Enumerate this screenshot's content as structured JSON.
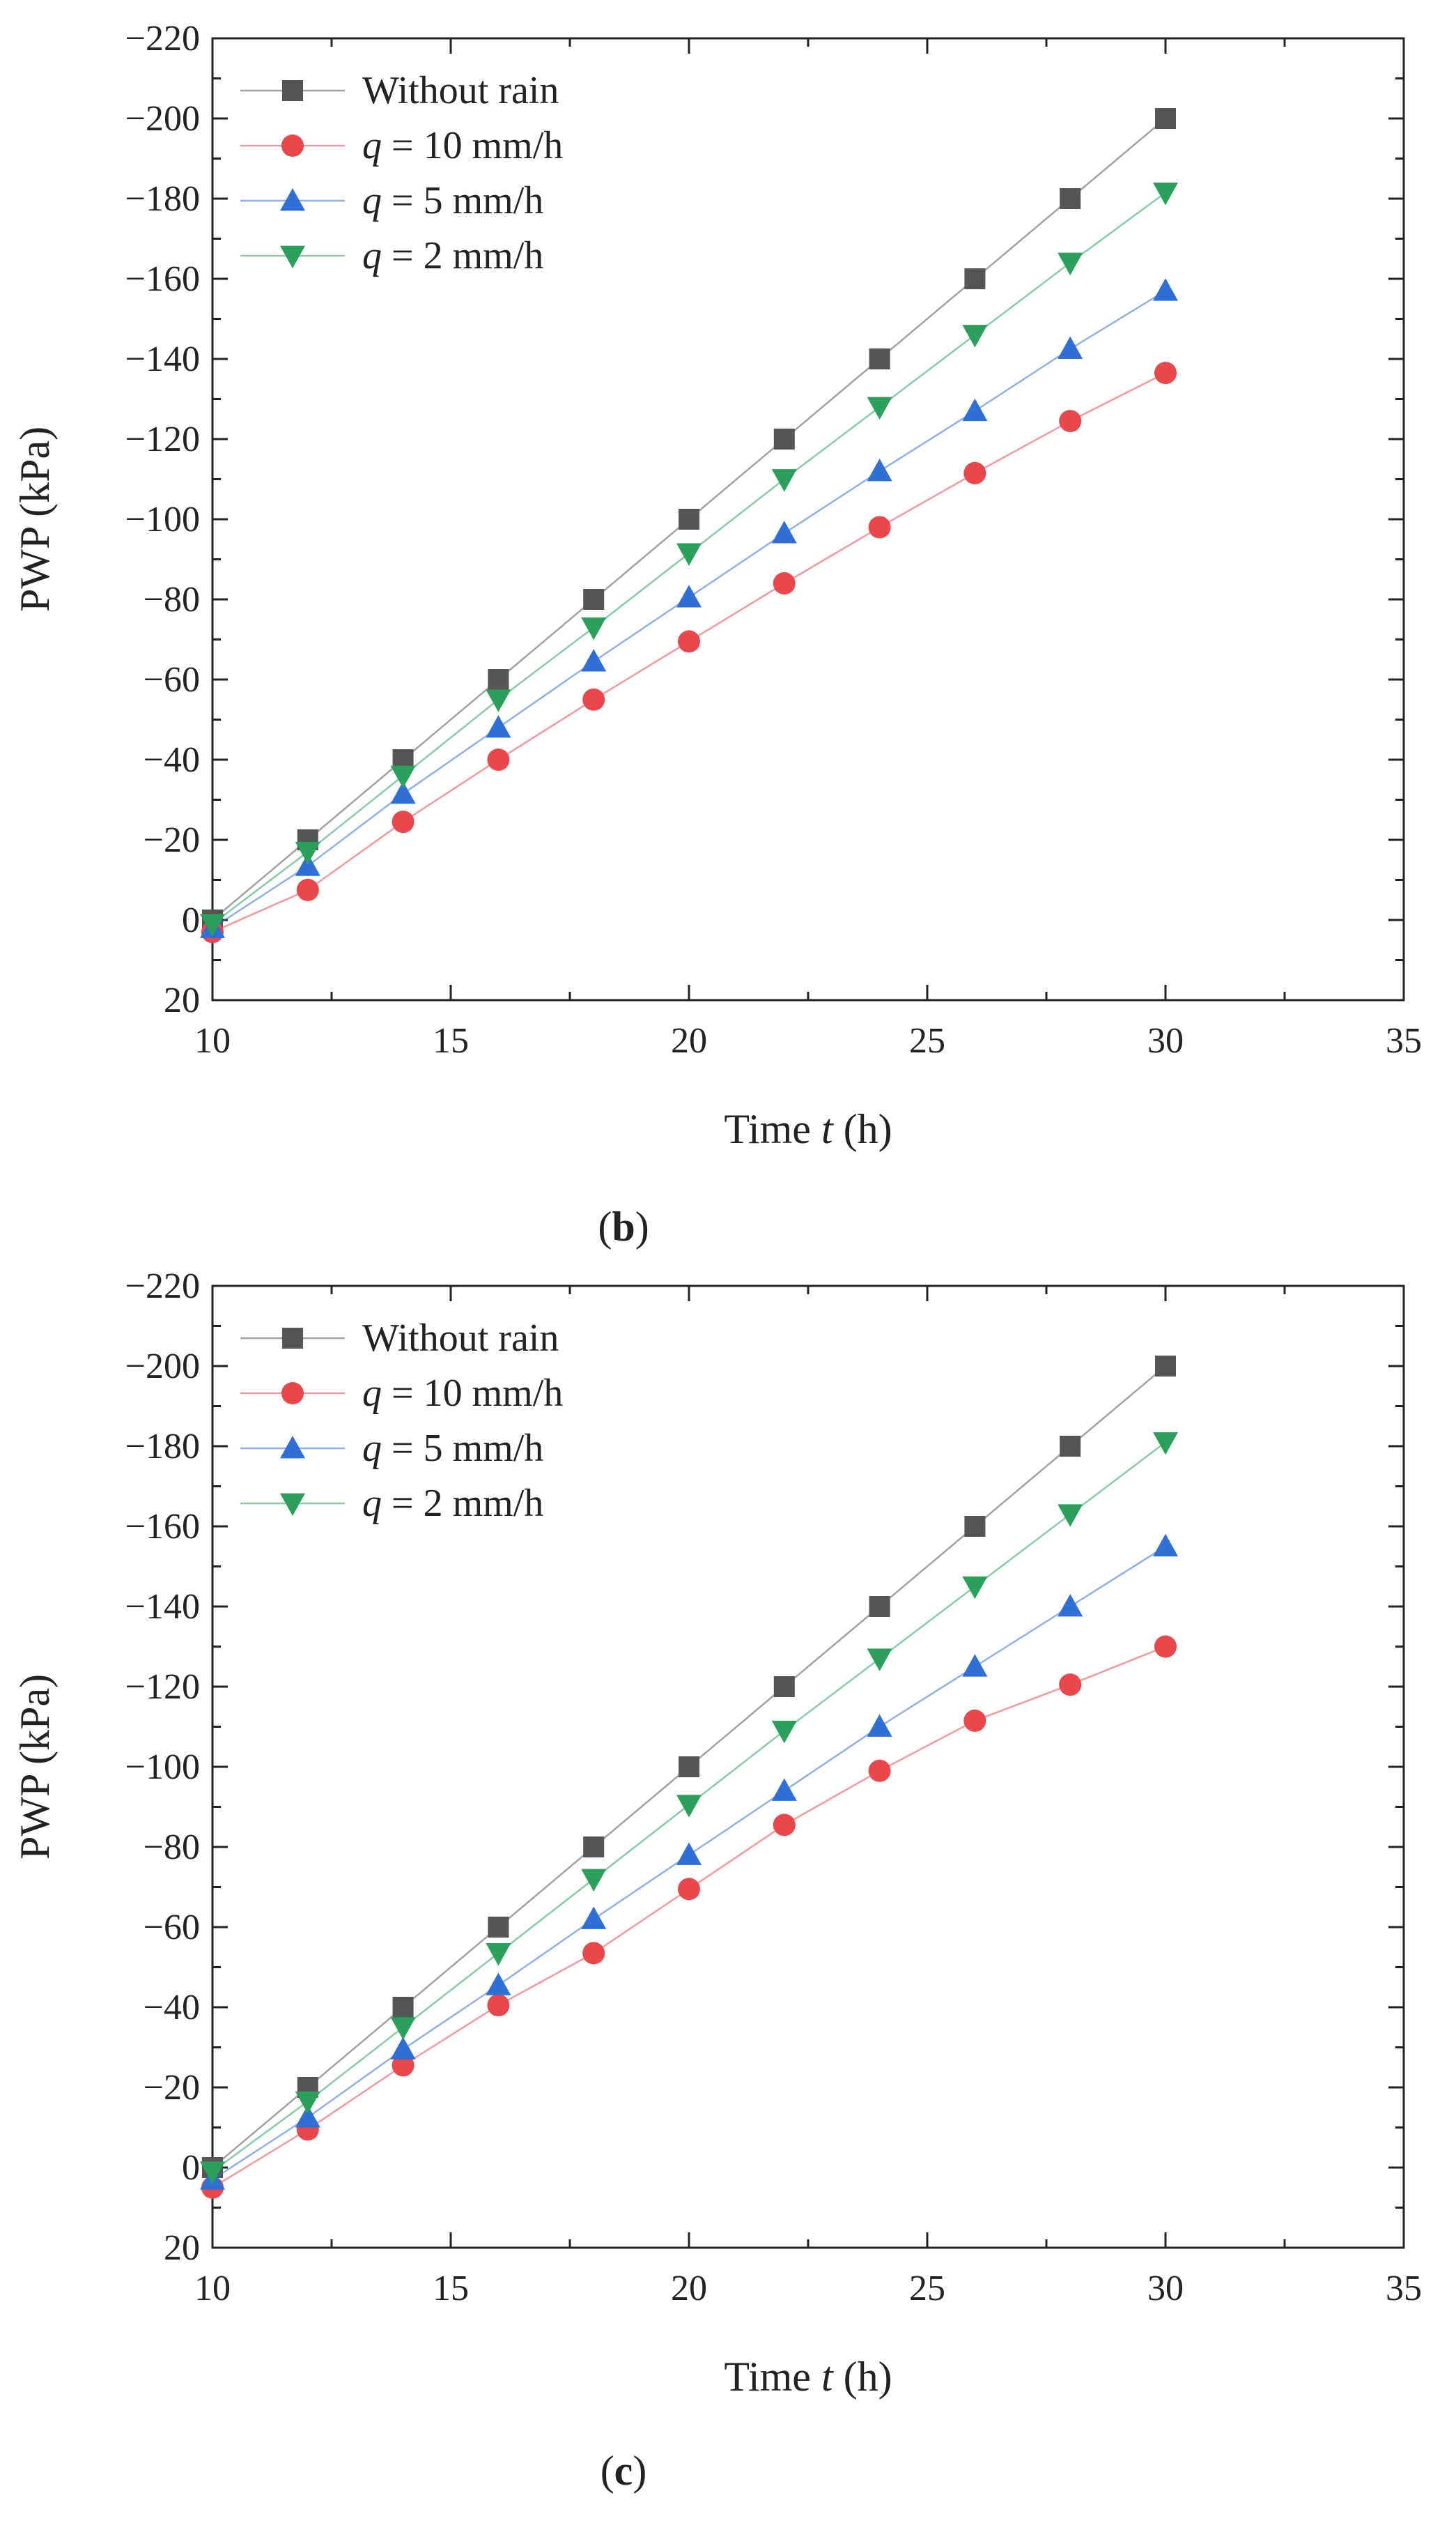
{
  "colors": {
    "without_rain": "#555555",
    "q10": "#e8474b",
    "q5": "#2f6fd6",
    "q2": "#2aa05a"
  },
  "chart_data": [
    {
      "type": "line",
      "panel_label": "b",
      "xlabel": {
        "prefix": "Time ",
        "var": "t",
        "suffix": " (h)"
      },
      "ylabel": "PWP (kPa)",
      "xlim": [
        10,
        35
      ],
      "ylim": [
        20,
        -220
      ],
      "xticks": [
        10,
        15,
        20,
        25,
        30,
        35
      ],
      "yticks": [
        20,
        0,
        -20,
        -40,
        -60,
        -80,
        -100,
        -120,
        -140,
        -160,
        -180,
        -200,
        -220
      ],
      "legend_position": "top-left",
      "x": [
        10,
        12,
        14,
        16,
        18,
        20,
        22,
        24,
        26,
        28,
        30
      ],
      "series": [
        {
          "key": "without_rain",
          "name": "Without rain",
          "marker": "square",
          "values": [
            0,
            -20,
            -40,
            -60,
            -80,
            -100,
            -120,
            -140,
            -160,
            -180,
            -200
          ]
        },
        {
          "key": "q10",
          "name_prefix": "q",
          "name_suffix": " = 10 mm/h",
          "marker": "circle",
          "values": [
            3,
            -7.5,
            -24.5,
            -40,
            -55,
            -69.5,
            -84,
            -98,
            -111.5,
            -124.5,
            -136.5
          ]
        },
        {
          "key": "q5",
          "name_prefix": "q",
          "name_suffix": " =   5 mm/h",
          "marker": "triangle-up",
          "values": [
            2,
            -13.5,
            -31.5,
            -48,
            -64.5,
            -80.5,
            -96.5,
            -112,
            -127,
            -142.5,
            -157
          ]
        },
        {
          "key": "q2",
          "name_prefix": "q",
          "name_suffix": " =   2 mm/h",
          "marker": "triangle-down",
          "values": [
            1,
            -17,
            -36,
            -55,
            -73,
            -91.5,
            -110,
            -128,
            -146,
            -164,
            -181.5
          ]
        }
      ]
    },
    {
      "type": "line",
      "panel_label": "c",
      "xlabel": {
        "prefix": "Time ",
        "var": "t",
        "suffix": " (h)"
      },
      "ylabel": "PWP (kPa)",
      "xlim": [
        10,
        35
      ],
      "ylim": [
        20,
        -220
      ],
      "xticks": [
        10,
        15,
        20,
        25,
        30,
        35
      ],
      "yticks": [
        20,
        0,
        -20,
        -40,
        -60,
        -80,
        -100,
        -120,
        -140,
        -160,
        -180,
        -200,
        -220
      ],
      "legend_position": "top-left",
      "x": [
        10,
        12,
        14,
        16,
        18,
        20,
        22,
        24,
        26,
        28,
        30
      ],
      "series": [
        {
          "key": "without_rain",
          "name": "Without rain",
          "marker": "square",
          "values": [
            0,
            -20,
            -40,
            -60,
            -80,
            -100,
            -120,
            -140,
            -160,
            -180,
            -200
          ]
        },
        {
          "key": "q10",
          "name_prefix": "q",
          "name_suffix": " = 10 mm/h",
          "marker": "circle",
          "values": [
            5,
            -9.5,
            -25.5,
            -40.5,
            -53.5,
            -69.5,
            -85.5,
            -99,
            -111.5,
            -120.5,
            -130
          ]
        },
        {
          "key": "q5",
          "name_prefix": "q",
          "name_suffix": " =   5 mm/h",
          "marker": "triangle-up",
          "values": [
            3,
            -12.5,
            -29.5,
            -45.5,
            -62,
            -78,
            -94,
            -110,
            -125,
            -140,
            -155
          ]
        },
        {
          "key": "q2",
          "name_prefix": "q",
          "name_suffix": " =   2 mm/h",
          "marker": "triangle-down",
          "values": [
            1,
            -16.5,
            -35,
            -53.5,
            -72,
            -90.5,
            -109,
            -127,
            -145,
            -163,
            -181
          ]
        }
      ]
    }
  ]
}
